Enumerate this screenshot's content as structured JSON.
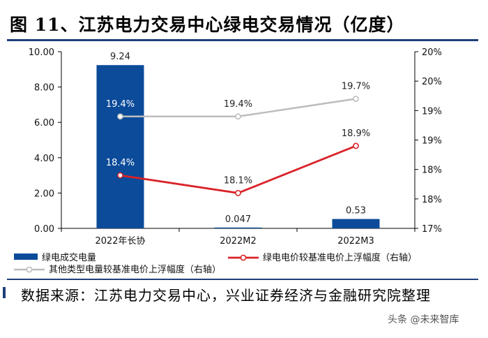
{
  "header": {
    "title": "图 11、江苏电力交易中心绿电交易情况（亿度）"
  },
  "footer": {
    "source": "数据来源：江苏电力交易中心，兴业证券经济与金融研究院整理",
    "watermark": "头条 @未来智库"
  },
  "colors": {
    "bar": "#0b4b99",
    "red_line": "#d92328",
    "gray_line": "#bdbdbd",
    "rule": "#1f3f7a"
  },
  "chart_data": {
    "type": "bar",
    "categories": [
      "2022年长协",
      "2022M2",
      "2022M3"
    ],
    "y_left": {
      "ticks": [
        "0.00",
        "2.00",
        "4.00",
        "6.00",
        "8.00",
        "10.00"
      ],
      "ylim": [
        0,
        10
      ]
    },
    "y_right": {
      "ticks": [
        "17%",
        "18%",
        "18%",
        "19%",
        "19%",
        "20%",
        "20%"
      ],
      "ylim": [
        17.5,
        20.5
      ]
    },
    "series": [
      {
        "name": "绿电成交电量",
        "type": "bar",
        "axis": "left",
        "values": [
          9.24,
          0.047,
          0.53
        ],
        "labels": [
          "9.24",
          "0.047",
          "0.53"
        ]
      },
      {
        "name": "绿电电价较基准电价上浮幅度（右轴）",
        "type": "line",
        "axis": "right",
        "values": [
          18.4,
          18.1,
          18.9
        ],
        "labels": [
          "18.4%",
          "18.1%",
          "18.9%"
        ]
      },
      {
        "name": "其他类型电量较基准电价上浮幅度（右轴）",
        "type": "line",
        "axis": "right",
        "values": [
          19.4,
          19.4,
          19.7
        ],
        "labels": [
          "19.4%",
          "19.4%",
          "19.7%"
        ]
      }
    ],
    "legend_position": "bottom",
    "grid": false
  }
}
